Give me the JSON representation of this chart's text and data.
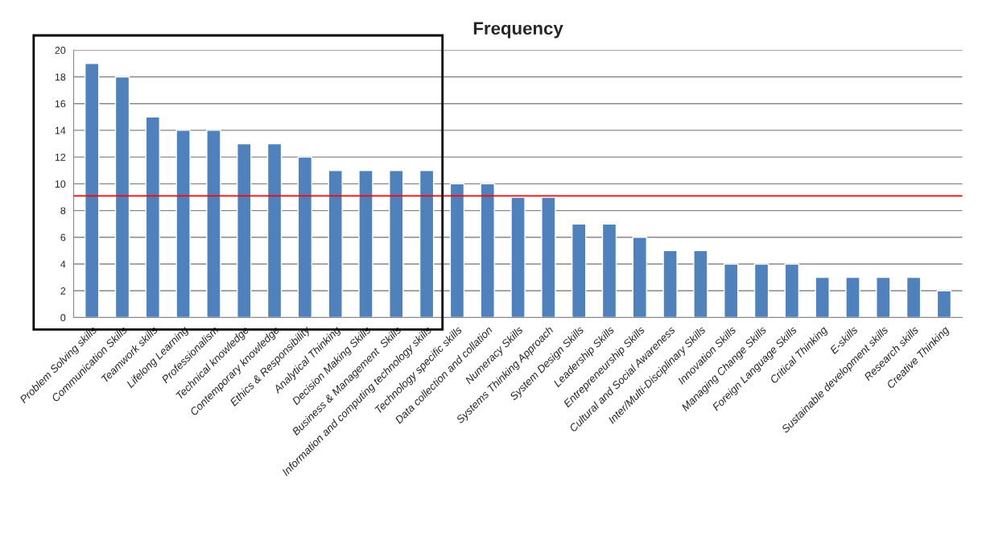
{
  "chart_data": {
    "type": "bar",
    "title": "Frequency",
    "categories": [
      "Problem Solving skills",
      "Communication Skills",
      "Teamwork skills",
      "Lifelong Learning",
      "Professionalism",
      "Technical knowledge",
      "Contemporary knowledge",
      "Ethics & Responsibility",
      "Analytical Thinking",
      "Decision Making Skills",
      "Business & Management  Skills",
      "Information and computing technology skills",
      "Technology specific skills",
      "Data collection and collation",
      "Numeracy Skills",
      "Systems Thinking Approach",
      "System Design Skills",
      "Leadership Skills",
      "Entrepreneurship Skills",
      "Cultural and Social Awareness",
      "Inter/Multi-Disciplinary Skills",
      "Innovation Skills",
      "Managing Change Skills",
      "Foreign Language Skills",
      "Critical Thinking",
      "E-skills",
      "Sustainable development skills",
      "Research skills",
      "Creative Thinking"
    ],
    "values": [
      19,
      18,
      15,
      14,
      14,
      13,
      13,
      12,
      11,
      11,
      11,
      11,
      10,
      10,
      9,
      9,
      7,
      7,
      6,
      5,
      5,
      4,
      4,
      4,
      3,
      3,
      3,
      3,
      2
    ],
    "color": "#4f81bd",
    "ylim": [
      0,
      20
    ],
    "yticks": [
      0,
      2,
      4,
      6,
      8,
      10,
      12,
      14,
      16,
      18,
      20
    ],
    "grid": "y",
    "ref_lines": [
      {
        "axis": "y",
        "value": 9.1,
        "color": "#ff0000"
      }
    ]
  }
}
